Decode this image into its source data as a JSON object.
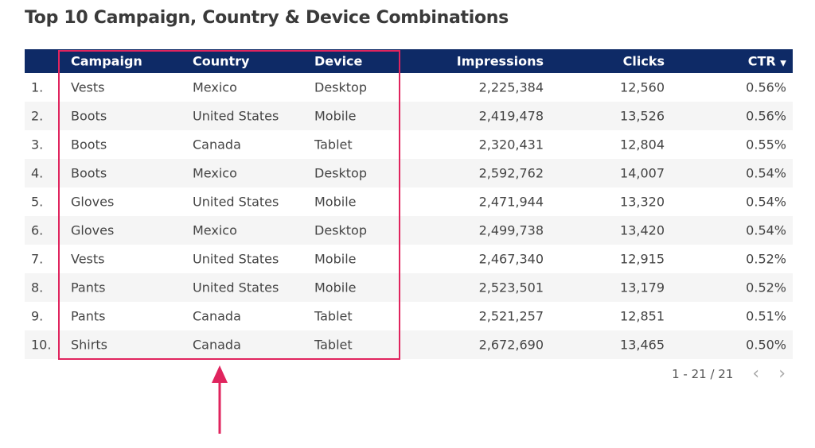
{
  "title": "Top 10 Campaign, Country & Device Combinations",
  "columns": {
    "campaign": "Campaign",
    "country": "Country",
    "device": "Device",
    "impressions": "Impressions",
    "clicks": "Clicks",
    "ctr": "CTR",
    "sort_icon": "triangle-down-icon"
  },
  "rows": [
    {
      "idx": "1.",
      "campaign": "Vests",
      "country": "Mexico",
      "device": "Desktop",
      "impressions": "2,225,384",
      "clicks": "12,560",
      "ctr": "0.56%"
    },
    {
      "idx": "2.",
      "campaign": "Boots",
      "country": "United States",
      "device": "Mobile",
      "impressions": "2,419,478",
      "clicks": "13,526",
      "ctr": "0.56%"
    },
    {
      "idx": "3.",
      "campaign": "Boots",
      "country": "Canada",
      "device": "Tablet",
      "impressions": "2,320,431",
      "clicks": "12,804",
      "ctr": "0.55%"
    },
    {
      "idx": "4.",
      "campaign": "Boots",
      "country": "Mexico",
      "device": "Desktop",
      "impressions": "2,592,762",
      "clicks": "14,007",
      "ctr": "0.54%"
    },
    {
      "idx": "5.",
      "campaign": "Gloves",
      "country": "United States",
      "device": "Mobile",
      "impressions": "2,471,944",
      "clicks": "13,320",
      "ctr": "0.54%"
    },
    {
      "idx": "6.",
      "campaign": "Gloves",
      "country": "Mexico",
      "device": "Desktop",
      "impressions": "2,499,738",
      "clicks": "13,420",
      "ctr": "0.54%"
    },
    {
      "idx": "7.",
      "campaign": "Vests",
      "country": "United States",
      "device": "Mobile",
      "impressions": "2,467,340",
      "clicks": "12,915",
      "ctr": "0.52%"
    },
    {
      "idx": "8.",
      "campaign": "Pants",
      "country": "United States",
      "device": "Mobile",
      "impressions": "2,523,501",
      "clicks": "13,179",
      "ctr": "0.52%"
    },
    {
      "idx": "9.",
      "campaign": "Pants",
      "country": "Canada",
      "device": "Tablet",
      "impressions": "2,521,257",
      "clicks": "12,851",
      "ctr": "0.51%"
    },
    {
      "idx": "10.",
      "campaign": "Shirts",
      "country": "Canada",
      "device": "Tablet",
      "impressions": "2,672,690",
      "clicks": "13,465",
      "ctr": "0.50%"
    }
  ],
  "pagination": {
    "range": "1 - 21 / 21",
    "prev": "‹",
    "next": "›"
  },
  "colors": {
    "header": "#0e2a66",
    "highlight": "#e0245e"
  }
}
